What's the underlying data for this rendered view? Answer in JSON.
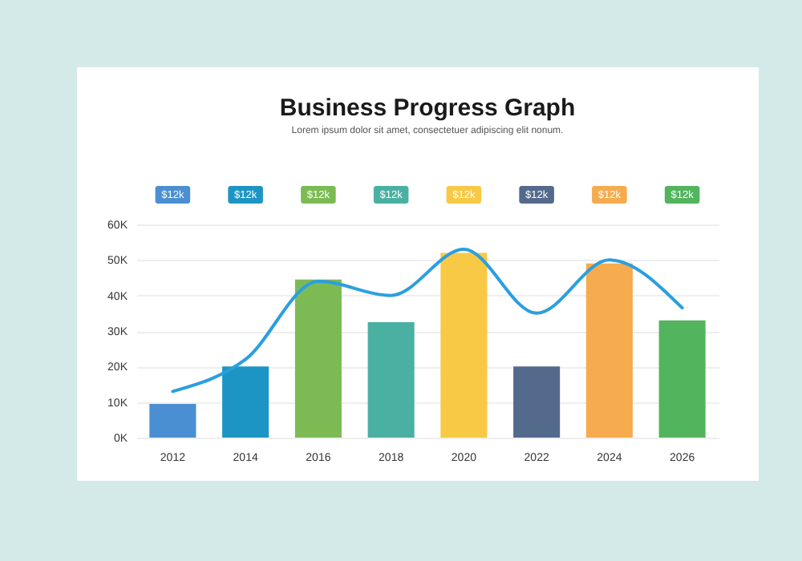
{
  "chart_data": {
    "type": "bar",
    "title": "Business Progress Graph",
    "subtitle": "Lorem ipsum dolor sit amet, consectetuer adipiscing elit nonum.",
    "categories": [
      "2012",
      "2014",
      "2016",
      "2018",
      "2020",
      "2022",
      "2024",
      "2026"
    ],
    "series": [
      {
        "colors": [
          "#4a8fd2",
          "#1d95c4",
          "#7cbb54",
          "#4ab0a2",
          "#f8c944",
          "#536a8c",
          "#f5ab4e",
          "#52b45d"
        ],
        "values": [
          9.5,
          20,
          44.5,
          32.5,
          52,
          20,
          49,
          33
        ]
      },
      {
        "type": "line",
        "color": "#2a9fe0",
        "values": [
          13,
          22,
          44,
          40,
          53,
          35,
          50,
          36.5
        ]
      }
    ],
    "ylim": [
      0,
      60
    ],
    "yticks": [
      {
        "value": 0,
        "label": "0K"
      },
      {
        "value": 10,
        "label": "10K"
      },
      {
        "value": 20,
        "label": "20K"
      },
      {
        "value": 30,
        "label": "30K"
      },
      {
        "value": 40,
        "label": "40K"
      },
      {
        "value": 50,
        "label": "50K"
      },
      {
        "value": 60,
        "label": "60K"
      }
    ],
    "grid": "y",
    "annotations": [
      "$12k",
      "$12k",
      "$12k",
      "$12k",
      "$12k",
      "$12k",
      "$12k",
      "$12k"
    ]
  }
}
